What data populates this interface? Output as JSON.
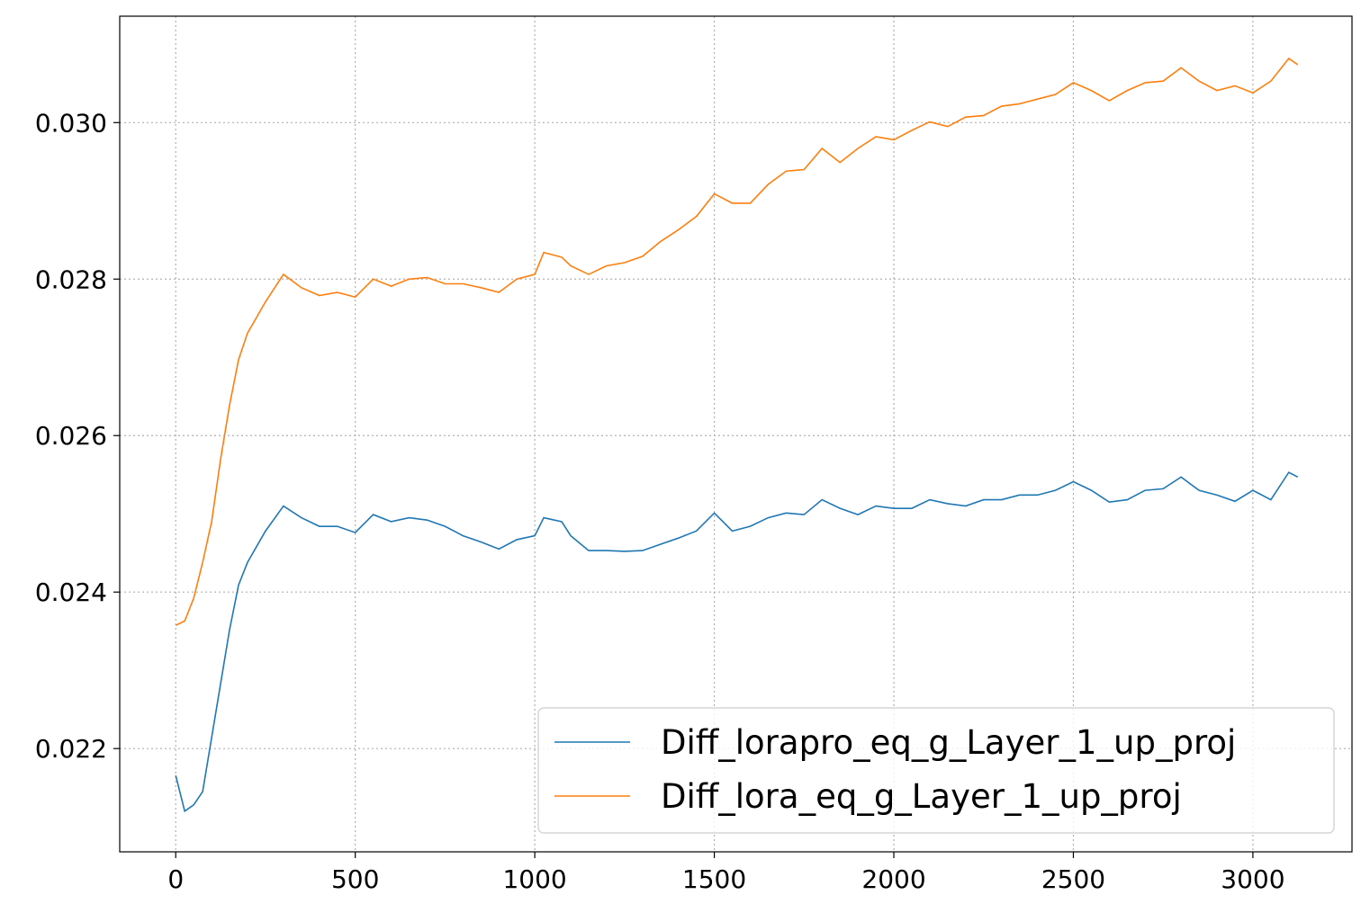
{
  "chart_data": {
    "type": "line",
    "x": [
      0,
      25,
      50,
      75,
      100,
      125,
      150,
      175,
      200,
      250,
      300,
      350,
      400,
      450,
      500,
      550,
      600,
      650,
      700,
      750,
      800,
      850,
      900,
      950,
      1000,
      1025,
      1075,
      1100,
      1150,
      1200,
      1250,
      1300,
      1350,
      1400,
      1450,
      1500,
      1550,
      1600,
      1650,
      1700,
      1750,
      1800,
      1850,
      1900,
      1950,
      2000,
      2050,
      2100,
      2150,
      2200,
      2250,
      2300,
      2350,
      2400,
      2450,
      2500,
      2550,
      2600,
      2650,
      2700,
      2750,
      2800,
      2850,
      2900,
      2950,
      3000,
      3050,
      3100,
      3125
    ],
    "series": [
      {
        "name": "Diff_lorapro_eq_g_Layer_1_up_proj",
        "color": "#1f77b4",
        "values": [
          0.021655,
          0.0212,
          0.02128,
          0.02145,
          0.02214,
          0.02283,
          0.02352,
          0.02409,
          0.02438,
          0.02478,
          0.0251,
          0.02495,
          0.02484,
          0.02484,
          0.02476,
          0.02499,
          0.0249,
          0.02495,
          0.02492,
          0.02484,
          0.02472,
          0.02464,
          0.02455,
          0.02467,
          0.02472,
          0.02495,
          0.0249,
          0.02472,
          0.02453,
          0.02453,
          0.02452,
          0.02453,
          0.02461,
          0.02469,
          0.02478,
          0.02501,
          0.02478,
          0.02484,
          0.02495,
          0.02501,
          0.02499,
          0.02518,
          0.02507,
          0.02499,
          0.0251,
          0.02507,
          0.02507,
          0.02518,
          0.02513,
          0.0251,
          0.02518,
          0.02518,
          0.02524,
          0.02524,
          0.0253,
          0.02541,
          0.0253,
          0.02515,
          0.02518,
          0.0253,
          0.02532,
          0.02547,
          0.0253,
          0.02524,
          0.02516,
          0.0253,
          0.02518,
          0.02553,
          0.02547
        ]
      },
      {
        "name": "Diff_lora_eq_g_Layer_1_up_proj",
        "color": "#ff7f0e",
        "values": [
          0.023575,
          0.02363,
          0.02392,
          0.02438,
          0.0249,
          0.0257,
          0.02639,
          0.02697,
          0.02731,
          0.02771,
          0.02806,
          0.02789,
          0.02779,
          0.02783,
          0.02777,
          0.028,
          0.02791,
          0.028,
          0.02802,
          0.02794,
          0.02794,
          0.02789,
          0.02783,
          0.028,
          0.02806,
          0.02834,
          0.02828,
          0.02817,
          0.02806,
          0.02817,
          0.02821,
          0.02829,
          0.02848,
          0.02863,
          0.0288,
          0.02909,
          0.02897,
          0.02897,
          0.02921,
          0.02938,
          0.0294,
          0.02967,
          0.02949,
          0.02967,
          0.02982,
          0.02978,
          0.0299,
          0.03001,
          0.02995,
          0.03007,
          0.03009,
          0.03021,
          0.03024,
          0.0303,
          0.03036,
          0.03051,
          0.03041,
          0.03028,
          0.03041,
          0.03051,
          0.03053,
          0.0307,
          0.03053,
          0.03041,
          0.03047,
          0.03038,
          0.03053,
          0.03082,
          0.03074
        ]
      }
    ],
    "xlim": [
      -156,
      3276
    ],
    "xticks": [
      0,
      500,
      1000,
      1500,
      2000,
      2500,
      3000
    ],
    "ylim": [
      0.02068,
      0.03136
    ],
    "yticks": [
      0.022,
      0.024,
      0.026,
      0.028,
      {
        "value": 0.03,
        "label": "0.030"
      }
    ],
    "grid": true,
    "legend": "lower right"
  }
}
